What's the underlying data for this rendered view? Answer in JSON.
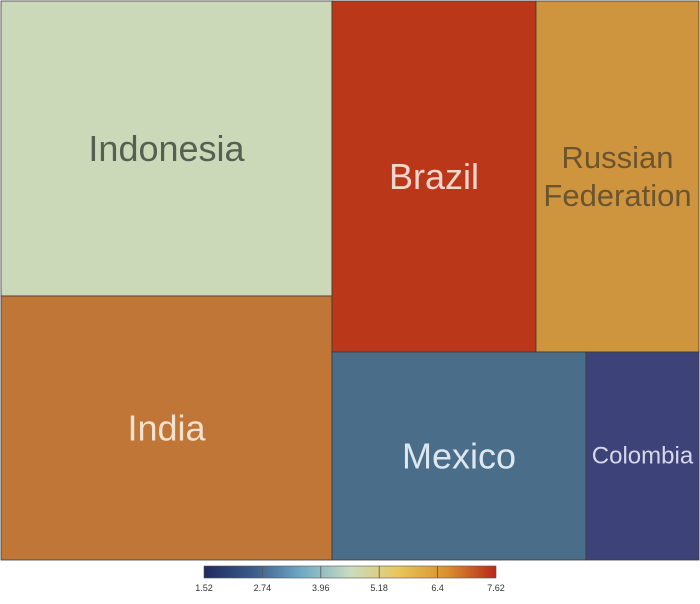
{
  "chart_data": {
    "type": "treemap",
    "title": "",
    "items": [
      {
        "name": "Indonesia",
        "label_lines": [
          "Indonesia"
        ],
        "value": 3.6
      },
      {
        "name": "India",
        "label_lines": [
          "India"
        ],
        "value": 6.1
      },
      {
        "name": "Brazil",
        "label_lines": [
          "Brazil"
        ],
        "value": 7.4
      },
      {
        "name": "Russian Federation",
        "label_lines": [
          "Russian",
          "Federation"
        ],
        "value": 6.2
      },
      {
        "name": "Mexico",
        "label_lines": [
          "Mexico"
        ],
        "value": 2.5
      },
      {
        "name": "Colombia",
        "label_lines": [
          "Colombia"
        ],
        "value": 1.52
      }
    ],
    "colorscale": {
      "min": 1.52,
      "max": 7.62,
      "ticks": [
        "1.52",
        "2.74",
        "3.96",
        "5.18",
        "6.4",
        "7.62"
      ],
      "stops": [
        "#1f2a5c",
        "#3b5a8a",
        "#6fa9c4",
        "#c9dcc0",
        "#e8c65a",
        "#d9902e",
        "#b8281a"
      ]
    },
    "tile_colors": {
      "Indonesia": "#cbd9b9",
      "India": "#c07637",
      "Brazil": "#bb3719",
      "Russian Federation": "#cf953e",
      "Mexico": "#4a6d89",
      "Colombia": "#3d4379"
    },
    "label_colors": {
      "Indonesia": "#556052",
      "India": "#f3e2d0",
      "Brazil": "#f3d7cf",
      "Russian Federation": "#6b5530",
      "Mexico": "#dfe7ee",
      "Colombia": "#d6d8ea"
    }
  }
}
